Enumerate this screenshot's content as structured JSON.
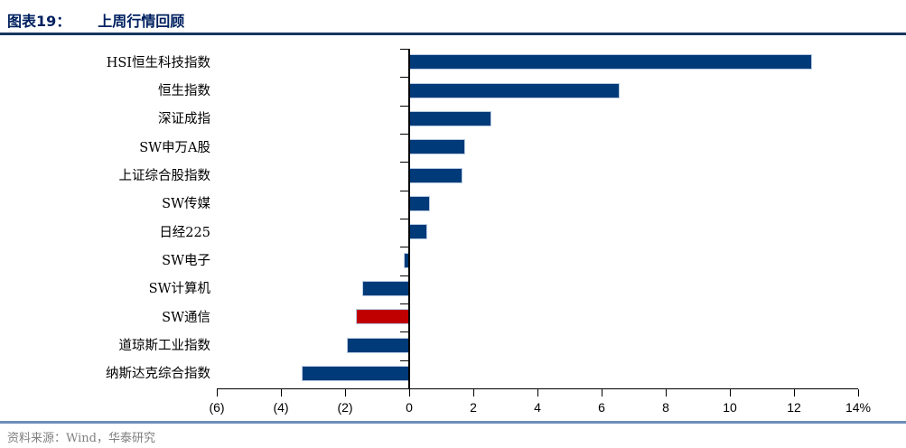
{
  "header": {
    "label": "图表19：",
    "title": "上周行情回顾"
  },
  "footer": {
    "source": "资料来源：Wind，华泰研究"
  },
  "colors": {
    "bar": "#003a78",
    "highlight": "#c00000",
    "bar_outline": "#b8cce4",
    "title_text": "#002060",
    "title_rule": "#17365d",
    "footer_rule": "#6d8ebc",
    "footer_text": "#808080",
    "axis": "#000000"
  },
  "chart_data": {
    "type": "bar",
    "orientation": "horizontal",
    "title": "上周行情回顾",
    "unit": "%",
    "categories": [
      "HSI恒生科技指数",
      "恒生指数",
      "深证成指",
      "SW申万A股",
      "上证综合股指数",
      "SW传媒",
      "日经225",
      "SW电子",
      "SW计算机",
      "SW通信",
      "道琼斯工业指数",
      "纳斯达克综合指数"
    ],
    "values": [
      12.5,
      6.5,
      2.5,
      1.7,
      1.6,
      0.6,
      0.5,
      -0.1,
      -1.4,
      -1.6,
      -1.9,
      -3.3
    ],
    "highlight_index": 9,
    "xlim": [
      -6,
      14
    ],
    "x_ticks": [
      -6,
      -4,
      -2,
      0,
      2,
      4,
      6,
      8,
      10,
      12,
      14
    ],
    "x_tick_labels": [
      "(6)",
      "(4)",
      "(2)",
      "0",
      "2",
      "4",
      "6",
      "8",
      "10",
      "12",
      "14%"
    ],
    "grid": false,
    "legend": false
  }
}
